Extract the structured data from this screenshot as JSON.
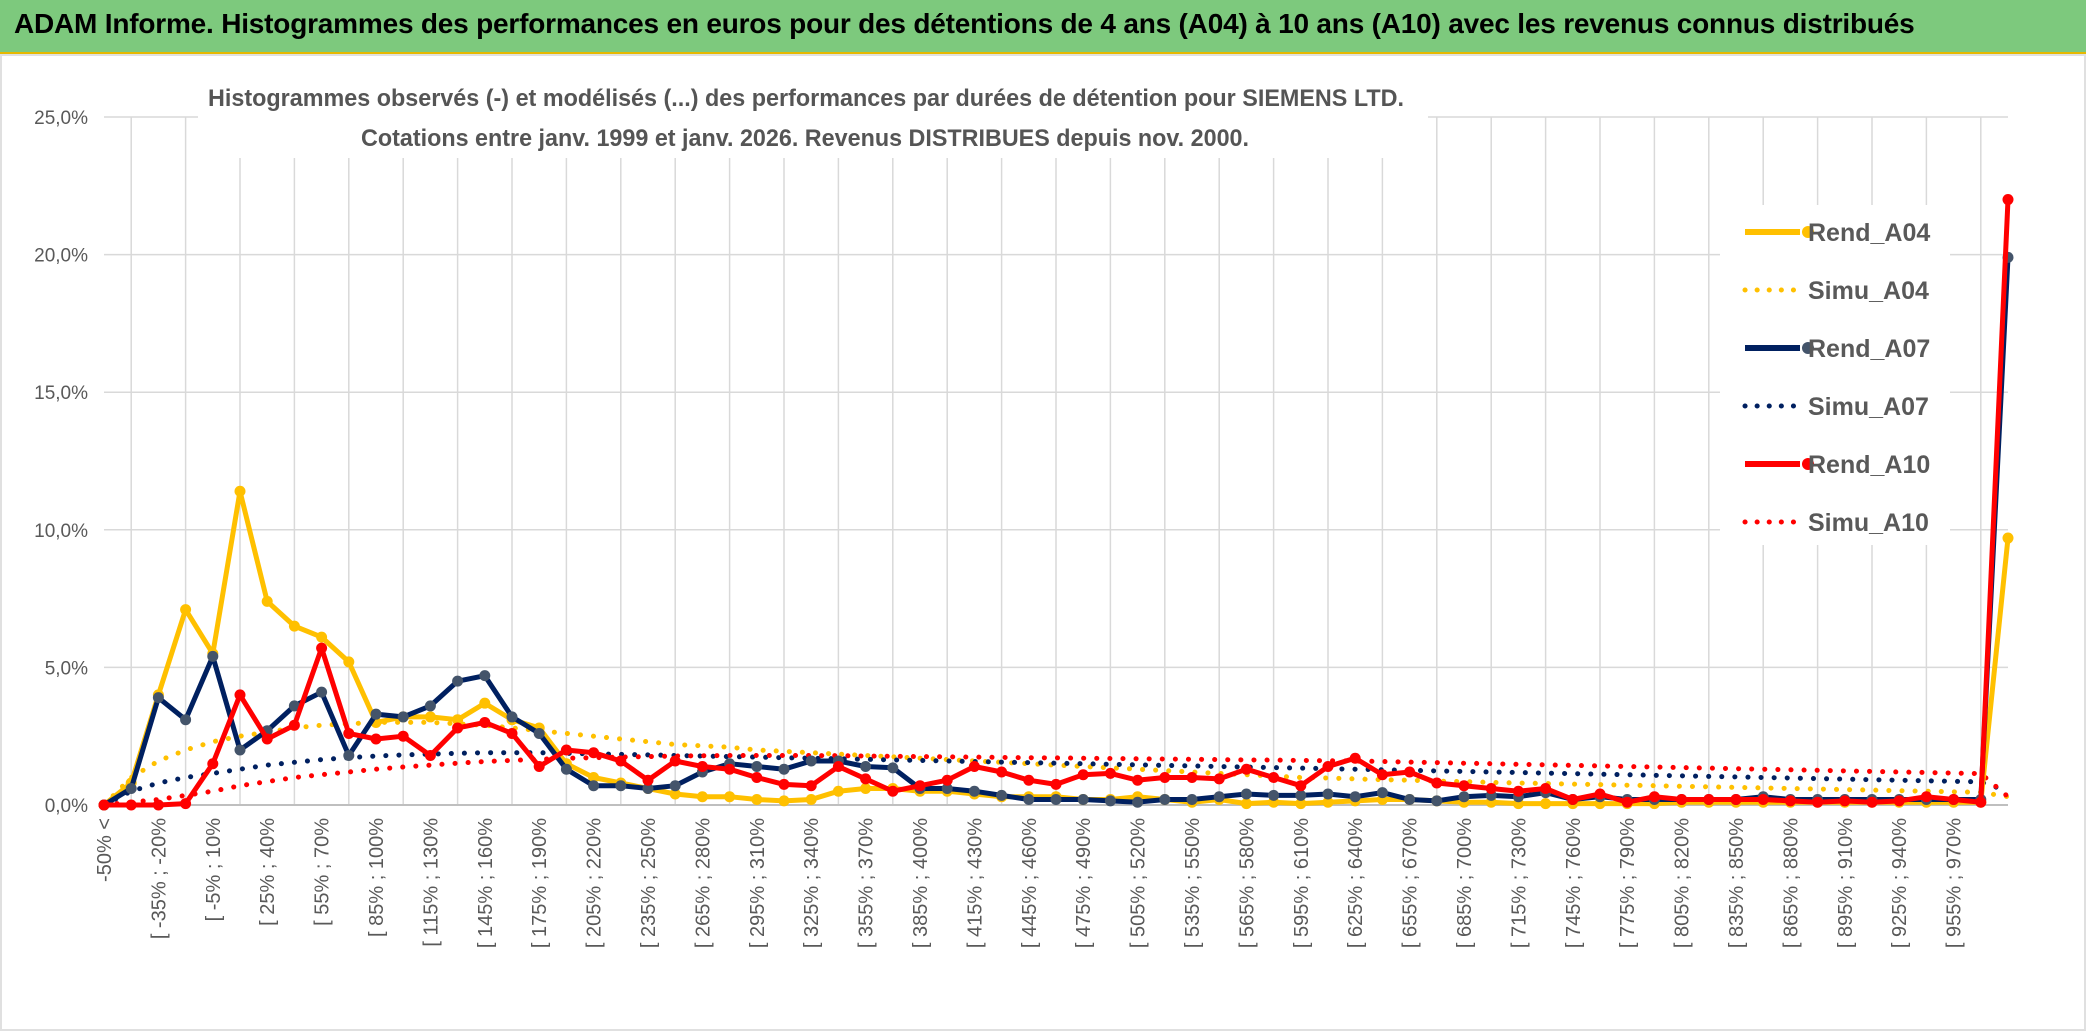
{
  "banner": {
    "title": "ADAM Informe. Histogrammes des performances en euros pour des détentions de 4 ans (A04) à 10 ans (A10) avec les revenus connus distribués"
  },
  "colors": {
    "banner_bg": "#7dc97d",
    "A04": "#ffc000",
    "A07": "#002060",
    "A10": "#ff0000",
    "grid": "#d9d9d9"
  },
  "chart_data": {
    "type": "line",
    "title_line1": "Histogrammes observés (-) et modélisés (...) des performances par durées de détention pour SIEMENS LTD.",
    "title_line2": "Cotations entre janv. 1999 et janv. 2026. Revenus DISTRIBUES depuis nov. 2000.",
    "xlabel": "",
    "ylabel": "",
    "ylim": [
      0,
      25
    ],
    "yticks": [
      "0,0%",
      "5,0%",
      "10,0%",
      "15,0%",
      "20,0%",
      "25,0%"
    ],
    "legend_position": "right",
    "x_tick_labels": [
      "-50% <",
      "[ -35% ; -20%",
      "[ -5% ; 10%",
      "[ 25% ; 40%",
      "[ 55% ; 70%",
      "[ 85% ; 100%",
      "[ 115% ; 130%",
      "[ 145% ; 160%",
      "[ 175% ; 190%",
      "[ 205% ; 220%",
      "[ 235% ; 250%",
      "[ 265% ; 280%",
      "[ 295% ; 310%",
      "[ 325% ; 340%",
      "[ 355% ; 370%",
      "[ 385% ; 400%",
      "[ 415% ; 430%",
      "[ 445% ; 460%",
      "[ 475% ; 490%",
      "[ 505% ; 520%",
      "[ 535% ; 550%",
      "[ 565% ; 580%",
      "[ 595% ; 610%",
      "[ 625% ; 640%",
      "[ 655% ; 670%",
      "[ 685% ; 700%",
      "[ 715% ; 730%",
      "[ 745% ; 760%",
      "[ 775% ; 790%",
      "[ 805% ; 820%",
      "[ 835% ; 850%",
      "[ 865% ; 880%",
      "[ 895% ; 910%",
      "[ 925% ; 940%",
      "[ 955% ; 970%"
    ],
    "series": [
      {
        "name": "Rend_A04",
        "style": "solid",
        "color": "#ffc000",
        "values": [
          0,
          0.8,
          4.0,
          7.1,
          5.5,
          11.4,
          7.4,
          6.5,
          6.1,
          5.2,
          3.0,
          3.2,
          3.2,
          3.1,
          3.7,
          3.1,
          2.8,
          1.5,
          1.0,
          0.8,
          0.6,
          0.4,
          0.3,
          0.3,
          0.2,
          0.15,
          0.2,
          0.5,
          0.6,
          0.6,
          0.5,
          0.5,
          0.4,
          0.3,
          0.3,
          0.3,
          0.2,
          0.2,
          0.3,
          0.2,
          0.1,
          0.2,
          0.05,
          0.1,
          0.05,
          0.1,
          0.15,
          0.2,
          0.2,
          0.15,
          0.1,
          0.1,
          0.05,
          0.05,
          0.05,
          0.05,
          0.05,
          0.05,
          0.1,
          0.1,
          0.1,
          0.1,
          0.1,
          0.1,
          0.1,
          0.1,
          0.1,
          0.1,
          0.1,
          0.1,
          9.7
        ]
      },
      {
        "name": "Simu_A04",
        "style": "dotted",
        "color": "#ffc000",
        "values": [
          0,
          1.0,
          1.6,
          2.0,
          2.3,
          2.5,
          2.65,
          2.8,
          2.9,
          2.95,
          3.0,
          3.0,
          3.0,
          2.95,
          2.9,
          2.8,
          2.7,
          2.6,
          2.5,
          2.4,
          2.3,
          2.2,
          2.15,
          2.1,
          2.0,
          1.95,
          1.9,
          1.85,
          1.8,
          1.75,
          1.7,
          1.65,
          1.6,
          1.55,
          1.5,
          1.45,
          1.4,
          1.35,
          1.3,
          1.25,
          1.2,
          1.15,
          1.1,
          1.05,
          1.0,
          0.98,
          0.95,
          0.92,
          0.9,
          0.87,
          0.85,
          0.82,
          0.8,
          0.78,
          0.76,
          0.74,
          0.72,
          0.7,
          0.68,
          0.66,
          0.64,
          0.62,
          0.6,
          0.58,
          0.56,
          0.54,
          0.52,
          0.5,
          0.48,
          0.46,
          0.3
        ]
      },
      {
        "name": "Rend_A07",
        "style": "solid",
        "color": "#002060",
        "values": [
          0,
          0.6,
          3.9,
          3.1,
          5.4,
          2.0,
          2.7,
          3.6,
          4.1,
          1.8,
          3.3,
          3.2,
          3.6,
          4.5,
          4.7,
          3.2,
          2.6,
          1.3,
          0.7,
          0.7,
          0.6,
          0.7,
          1.2,
          1.5,
          1.4,
          1.3,
          1.6,
          1.6,
          1.4,
          1.35,
          0.6,
          0.6,
          0.5,
          0.35,
          0.2,
          0.2,
          0.2,
          0.15,
          0.1,
          0.2,
          0.2,
          0.3,
          0.4,
          0.35,
          0.35,
          0.4,
          0.3,
          0.45,
          0.2,
          0.15,
          0.3,
          0.35,
          0.3,
          0.45,
          0.2,
          0.3,
          0.2,
          0.2,
          0.2,
          0.2,
          0.2,
          0.3,
          0.2,
          0.2,
          0.2,
          0.2,
          0.2,
          0.2,
          0.2,
          0.2,
          19.9
        ]
      },
      {
        "name": "Simu_A07",
        "style": "dotted",
        "color": "#002060",
        "values": [
          0,
          0.5,
          0.8,
          1.0,
          1.15,
          1.3,
          1.45,
          1.55,
          1.65,
          1.72,
          1.78,
          1.82,
          1.85,
          1.88,
          1.9,
          1.9,
          1.9,
          1.88,
          1.86,
          1.84,
          1.82,
          1.8,
          1.78,
          1.76,
          1.74,
          1.72,
          1.7,
          1.68,
          1.66,
          1.64,
          1.62,
          1.6,
          1.58,
          1.56,
          1.54,
          1.52,
          1.5,
          1.48,
          1.46,
          1.44,
          1.42,
          1.4,
          1.38,
          1.36,
          1.34,
          1.32,
          1.3,
          1.28,
          1.26,
          1.24,
          1.22,
          1.2,
          1.18,
          1.16,
          1.14,
          1.12,
          1.1,
          1.08,
          1.06,
          1.04,
          1.02,
          1.0,
          0.98,
          0.96,
          0.94,
          0.92,
          0.9,
          0.88,
          0.86,
          0.84,
          0.5
        ]
      },
      {
        "name": "Rend_A10",
        "style": "solid",
        "color": "#ff0000",
        "values": [
          0,
          0,
          0,
          0.05,
          1.5,
          4.0,
          2.4,
          2.9,
          5.7,
          2.6,
          2.4,
          2.5,
          1.8,
          2.8,
          3.0,
          2.6,
          1.4,
          2.0,
          1.9,
          1.6,
          0.9,
          1.6,
          1.4,
          1.3,
          1.0,
          0.75,
          0.7,
          1.4,
          0.95,
          0.5,
          0.7,
          0.9,
          1.4,
          1.2,
          0.9,
          0.75,
          1.1,
          1.15,
          0.9,
          1.0,
          1.0,
          0.95,
          1.3,
          1.0,
          0.7,
          1.4,
          1.7,
          1.1,
          1.2,
          0.8,
          0.7,
          0.6,
          0.5,
          0.6,
          0.2,
          0.4,
          0.1,
          0.3,
          0.2,
          0.2,
          0.2,
          0.2,
          0.15,
          0.1,
          0.15,
          0.1,
          0.15,
          0.3,
          0.2,
          0.1,
          22.0
        ]
      },
      {
        "name": "Simu_A10",
        "style": "dotted",
        "color": "#ff0000",
        "values": [
          0,
          0.1,
          0.2,
          0.35,
          0.5,
          0.7,
          0.85,
          1.0,
          1.1,
          1.2,
          1.3,
          1.38,
          1.45,
          1.52,
          1.58,
          1.62,
          1.66,
          1.7,
          1.72,
          1.74,
          1.76,
          1.78,
          1.79,
          1.8,
          1.8,
          1.8,
          1.8,
          1.79,
          1.78,
          1.77,
          1.76,
          1.75,
          1.74,
          1.73,
          1.72,
          1.71,
          1.7,
          1.69,
          1.68,
          1.67,
          1.66,
          1.65,
          1.64,
          1.63,
          1.62,
          1.61,
          1.6,
          1.58,
          1.56,
          1.54,
          1.52,
          1.5,
          1.48,
          1.46,
          1.44,
          1.42,
          1.4,
          1.38,
          1.36,
          1.34,
          1.32,
          1.3,
          1.28,
          1.26,
          1.24,
          1.22,
          1.2,
          1.18,
          1.16,
          1.14,
          0.3
        ]
      }
    ]
  }
}
